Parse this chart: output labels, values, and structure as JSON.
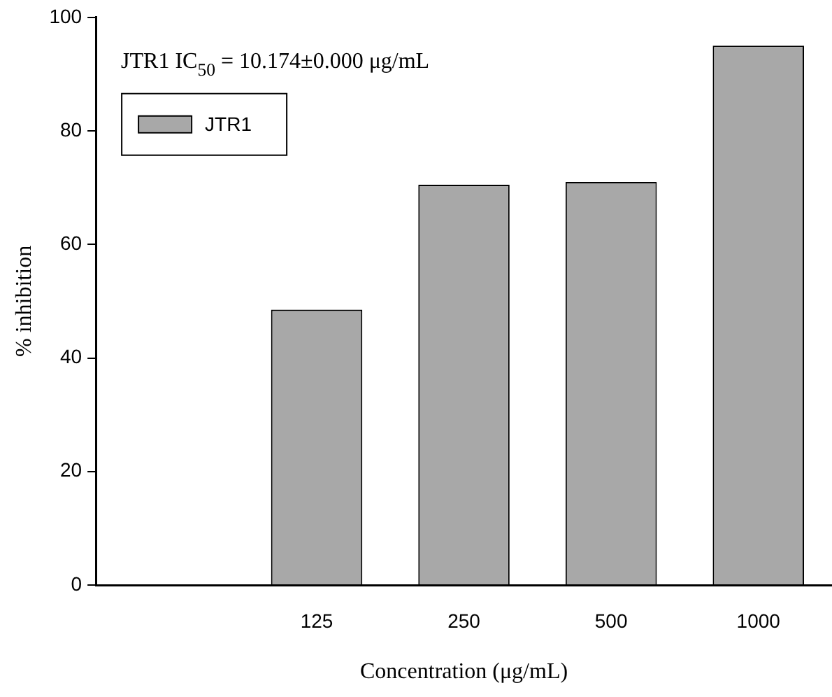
{
  "chart_data": {
    "type": "bar",
    "xlabel": "Concentration (μg/mL)",
    "ylabel": "% inhibition",
    "categories": [
      null,
      "125",
      "250",
      "500",
      "1000"
    ],
    "series": [
      {
        "name": "JTR1",
        "color": "#a8a8a8",
        "values": [
          null,
          48.5,
          70.5,
          71.0,
          95.0
        ]
      }
    ],
    "ylim": [
      0,
      100
    ],
    "yticks": [
      0,
      20,
      40,
      60,
      80,
      100
    ],
    "grid": false,
    "legend": "top left",
    "annotations": [
      "JTR1 IC$_{50}$ = 10.174±0.000 μg/mL"
    ]
  }
}
